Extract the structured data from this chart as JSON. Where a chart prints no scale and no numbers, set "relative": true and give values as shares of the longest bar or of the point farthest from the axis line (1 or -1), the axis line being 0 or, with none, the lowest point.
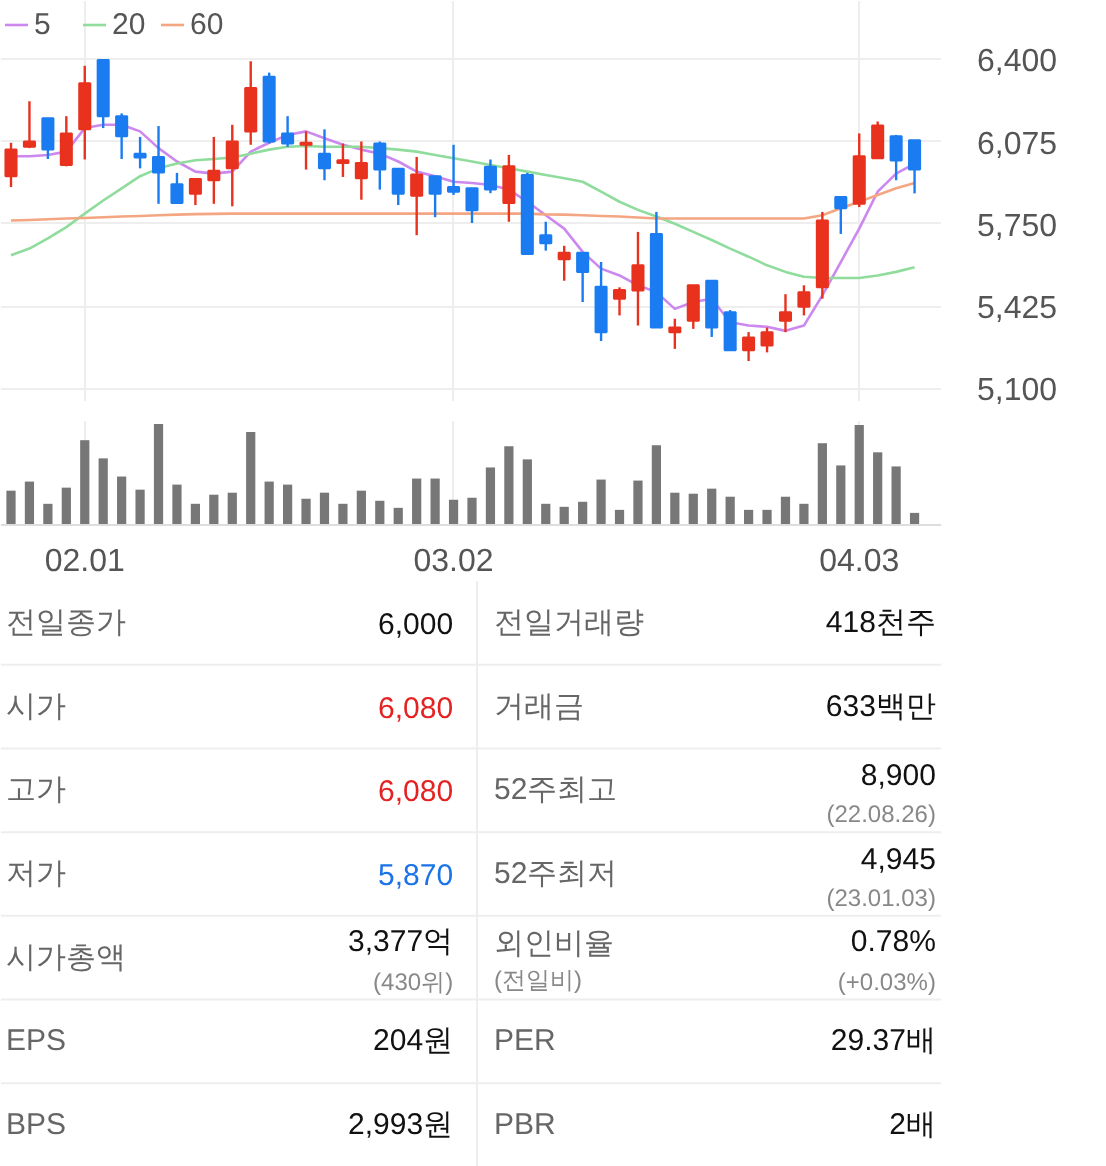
{
  "chart_data": [
    {
      "type": "candlestick",
      "categories": [
        null,
        null,
        null,
        null,
        "02.01",
        null,
        null,
        null,
        null,
        null,
        null,
        null,
        null,
        null,
        null,
        null,
        null,
        null,
        null,
        null,
        null,
        null,
        null,
        null,
        "03.02",
        null,
        null,
        null,
        null,
        null,
        null,
        null,
        null,
        null,
        null,
        null,
        null,
        null,
        null,
        null,
        null,
        null,
        null,
        null,
        null,
        null,
        "04.03",
        null,
        null,
        null
      ],
      "ohlc": [
        [
          5938,
          6070,
          5895,
          6043
        ],
        [
          6054,
          6234,
          6049,
          6075
        ],
        [
          6167,
          6167,
          6006,
          6043
        ],
        [
          5982,
          6175,
          5977,
          6107
        ],
        [
          6123,
          6374,
          6004,
          6305
        ],
        [
          6397,
          6397,
          6128,
          6175
        ],
        [
          6175,
          6186,
          6006,
          6096
        ],
        [
          6027,
          6093,
          5969,
          6012
        ],
        [
          6014,
          6136,
          5829,
          5953
        ],
        [
          5906,
          5951,
          5832,
          5832
        ],
        [
          5869,
          5930,
          5824,
          5927
        ],
        [
          5922,
          6093,
          5829,
          5959
        ],
        [
          5969,
          6141,
          5819,
          6075
        ],
        [
          6115,
          6392,
          6062,
          6286
        ],
        [
          6331,
          6347,
          6067,
          6075
        ],
        [
          6107,
          6175,
          6054,
          6067
        ],
        [
          6062,
          6115,
          5964,
          6070
        ],
        [
          6027,
          6123,
          5922,
          5969
        ],
        [
          5990,
          6067,
          5935,
          6001
        ],
        [
          5930,
          6075,
          5845,
          5990
        ],
        [
          6067,
          6075,
          5885,
          5964
        ],
        [
          5967,
          5967,
          5824,
          5869
        ],
        [
          5861,
          6014,
          5705,
          5945
        ],
        [
          5938,
          5938,
          5776,
          5869
        ],
        [
          5895,
          6062,
          5864,
          5877
        ],
        [
          5890,
          5890,
          5753,
          5803
        ],
        [
          5975,
          6004,
          5871,
          5885
        ],
        [
          5832,
          6022,
          5758,
          5977
        ],
        [
          5943,
          5951,
          5631,
          5631
        ],
        [
          5705,
          5758,
          5644,
          5673
        ],
        [
          5610,
          5663,
          5525,
          5636
        ],
        [
          5636,
          5636,
          5441,
          5560
        ],
        [
          5501,
          5599,
          5287,
          5322
        ],
        [
          5454,
          5499,
          5388,
          5488
        ],
        [
          5486,
          5718,
          5348,
          5586
        ],
        [
          5710,
          5797,
          5340,
          5340
        ],
        [
          5322,
          5375,
          5256,
          5340
        ],
        [
          5367,
          5507,
          5335,
          5507
        ],
        [
          5525,
          5525,
          5303,
          5340
        ],
        [
          5401,
          5409,
          5250,
          5250
        ],
        [
          5250,
          5322,
          5208,
          5301
        ],
        [
          5269,
          5340,
          5242,
          5322
        ],
        [
          5367,
          5472,
          5322,
          5401
        ],
        [
          5422,
          5507,
          5388,
          5480
        ],
        [
          5499,
          5797,
          5454,
          5763
        ],
        [
          5856,
          5856,
          5710,
          5811
        ],
        [
          5829,
          6107,
          5816,
          6017
        ],
        [
          6009,
          6154,
          6009,
          6138
        ],
        [
          6096,
          6101,
          5922,
          6000
        ],
        [
          6080,
          6080,
          5870,
          5964
        ]
      ],
      "colors": [
        "#e8321e",
        "#e8321e",
        "#1a7cf0",
        "#e8321e",
        "#e8321e",
        "#1a7cf0",
        "#1a7cf0",
        "#1a7cf0",
        "#1a7cf0",
        "#1a7cf0",
        "#e8321e",
        "#e8321e",
        "#e8321e",
        "#e8321e",
        "#1a7cf0",
        "#1a7cf0",
        "#e8321e",
        "#1a7cf0",
        "#e8321e",
        "#e8321e",
        "#1a7cf0",
        "#1a7cf0",
        "#e8321e",
        "#1a7cf0",
        "#1a7cf0",
        "#1a7cf0",
        "#1a7cf0",
        "#e8321e",
        "#1a7cf0",
        "#1a7cf0",
        "#e8321e",
        "#1a7cf0",
        "#1a7cf0",
        "#e8321e",
        "#e8321e",
        "#1a7cf0",
        "#e8321e",
        "#e8321e",
        "#1a7cf0",
        "#1a7cf0",
        "#e8321e",
        "#e8321e",
        "#e8321e",
        "#e8321e",
        "#e8321e",
        "#1a7cf0",
        "#e8321e",
        "#e8321e",
        "#1a7cf0",
        "#1a7cf0"
      ],
      "series": [
        {
          "name": "5",
          "type": "line",
          "color": "#cc88ee",
          "values": [
            6017,
            6017,
            6022,
            6035,
            6128,
            6141,
            6141,
            6115,
            6049,
            5996,
            5956,
            5948,
            5956,
            6035,
            6070,
            6101,
            6115,
            6088,
            6062,
            6043,
            6027,
            5996,
            5956,
            5938,
            5916,
            5911,
            5903,
            5885,
            5837,
            5784,
            5731,
            5639,
            5573,
            5546,
            5507,
            5480,
            5414,
            5441,
            5454,
            5361,
            5348,
            5343,
            5327,
            5348,
            5467,
            5599,
            5731,
            5877,
            5948,
            5988
          ]
        },
        {
          "name": "20",
          "type": "line",
          "color": "#8fdc9c",
          "values": [
            5626,
            5652,
            5692,
            5737,
            5790,
            5842,
            5890,
            5938,
            5969,
            5988,
            6001,
            6006,
            6012,
            6027,
            6043,
            6054,
            6057,
            6054,
            6054,
            6054,
            6049,
            6043,
            6035,
            6022,
            6009,
            5996,
            5982,
            5969,
            5956,
            5943,
            5930,
            5916,
            5877,
            5837,
            5805,
            5779,
            5750,
            5718,
            5686,
            5652,
            5620,
            5586,
            5560,
            5541,
            5536,
            5536,
            5536,
            5546,
            5560,
            5578
          ]
        },
        {
          "name": "60",
          "type": "line",
          "color": "#f4a582",
          "values": [
            5763,
            5765,
            5768,
            5771,
            5773,
            5776,
            5779,
            5781,
            5784,
            5786,
            5788,
            5789,
            5790,
            5790,
            5790,
            5790,
            5790,
            5790,
            5790,
            5790,
            5790,
            5790,
            5790,
            5790,
            5790,
            5790,
            5790,
            5790,
            5790,
            5787,
            5786,
            5784,
            5781,
            5779,
            5775,
            5771,
            5771,
            5771,
            5771,
            5771,
            5771,
            5771,
            5771,
            5771,
            5784,
            5811,
            5837,
            5864,
            5890,
            5911
          ]
        }
      ],
      "ylim": [
        5050,
        6630
      ],
      "yticks": [
        {
          "value": 5100,
          "label": "5,100"
        },
        {
          "value": 5425,
          "label": "5,425"
        },
        {
          "value": 5750,
          "label": "5,750"
        },
        {
          "value": 6075,
          "label": "6,075"
        },
        {
          "value": 6400,
          "label": "6,400"
        }
      ],
      "grid": true,
      "legend": "top left",
      "tick_labels": "y"
    },
    {
      "type": "bar",
      "categories": [
        null,
        null,
        null,
        null,
        "02.01",
        null,
        null,
        null,
        null,
        null,
        null,
        null,
        null,
        null,
        null,
        null,
        null,
        null,
        null,
        null,
        null,
        null,
        null,
        null,
        "03.02",
        null,
        null,
        null,
        null,
        null,
        null,
        null,
        null,
        null,
        null,
        null,
        null,
        null,
        null,
        null,
        null,
        null,
        null,
        null,
        null,
        null,
        "04.03",
        null,
        null,
        null
      ],
      "values": [
        0.34,
        0.43,
        0.21,
        0.37,
        0.84,
        0.66,
        0.48,
        0.35,
        1,
        0.4,
        0.21,
        0.3,
        0.32,
        0.92,
        0.43,
        0.4,
        0.26,
        0.32,
        0.21,
        0.34,
        0.24,
        0.17,
        0.46,
        0.46,
        0.25,
        0.27,
        0.57,
        0.78,
        0.65,
        0.21,
        0.18,
        0.23,
        0.45,
        0.15,
        0.44,
        0.79,
        0.32,
        0.31,
        0.36,
        0.28,
        0.15,
        0.15,
        0.28,
        0.21,
        0.81,
        0.59,
        0.99,
        0.72,
        0.58,
        0.12
      ],
      "color": "#777777",
      "relative": true,
      "grid": "x",
      "tick_labels": "x"
    },
    {
      "type": "other",
      "categories": [
        "전일종가",
        "시가",
        "고가",
        "저가",
        "시가총액",
        "EPS",
        "BPS",
        "전일거래량",
        "거래금",
        "52주최고",
        "52주최저",
        "외인비율\n(전일비)",
        "PER",
        "PBR"
      ],
      "value_labels": [
        "6,000",
        "6,080",
        "6,080",
        "5,870",
        "3,377억\n(430위)",
        "204원",
        "2,993원",
        "418천주",
        "633백만",
        "8,900\n(22.08.26)",
        "4,945\n(23.01.03)",
        "0.78%\n(+0.03%)",
        "29.37배",
        "2배"
      ],
      "colors": [
        "#111111",
        "#e52222",
        "#e52222",
        "#1a73e8",
        "#111111",
        "#111111",
        "#111111",
        "#111111",
        "#111111",
        "#111111",
        "#111111",
        "#111111",
        "#111111",
        "#111111"
      ]
    }
  ]
}
